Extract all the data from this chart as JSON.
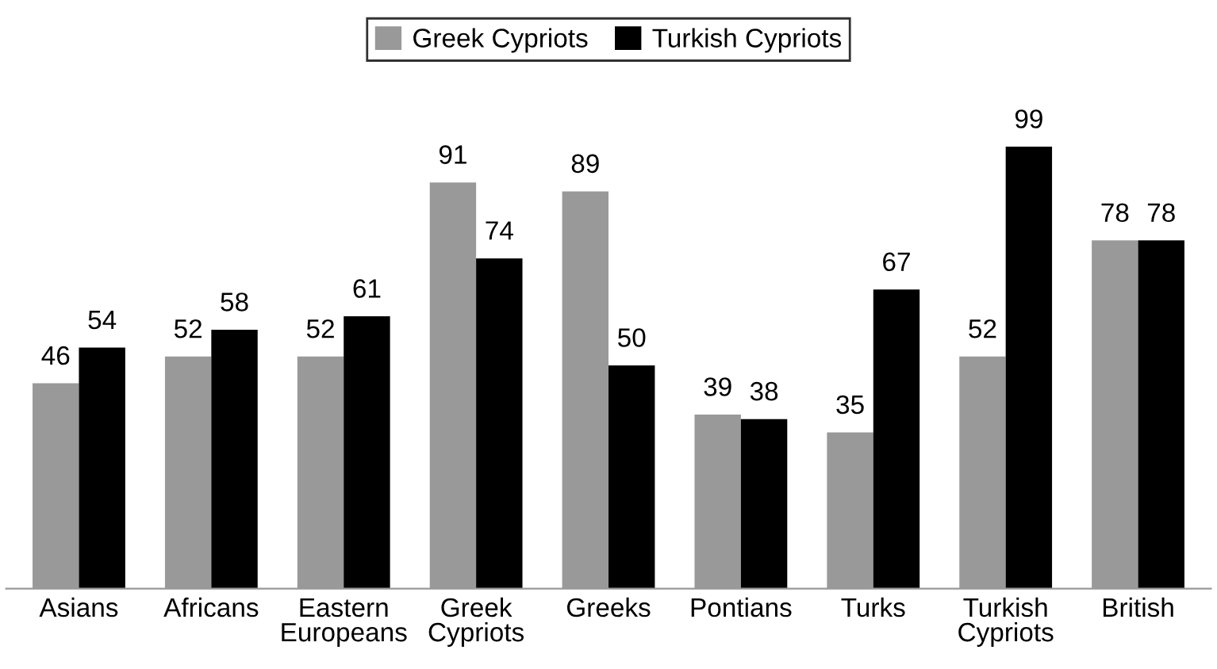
{
  "chart_data": {
    "type": "bar",
    "categories": [
      "Asians",
      "Africans",
      "Eastern\nEuropeans",
      "Greek\nCypriots",
      "Greeks",
      "Pontians",
      "Turks",
      "Turkish\nCypriots",
      "British"
    ],
    "series": [
      {
        "name": "Greek Cypriots",
        "color": "#999999",
        "values": [
          46,
          52,
          52,
          91,
          89,
          39,
          35,
          52,
          78
        ]
      },
      {
        "name": "Turkish Cypriots",
        "color": "#000000",
        "values": [
          54,
          58,
          61,
          74,
          50,
          38,
          67,
          99,
          78
        ]
      }
    ],
    "data_labels": true,
    "legend": "top",
    "grid": false
  }
}
